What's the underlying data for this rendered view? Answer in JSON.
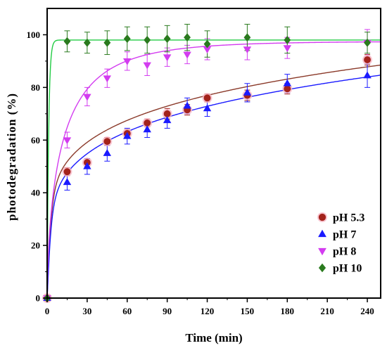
{
  "chart_data": {
    "type": "scatter",
    "xlabel": "Time (min)",
    "ylabel": "photodegradation (%)",
    "xlim": [
      0,
      250
    ],
    "ylim": [
      0,
      110
    ],
    "x_ticks": [
      0,
      30,
      60,
      90,
      120,
      150,
      180,
      210,
      240
    ],
    "y_ticks": [
      0,
      20,
      40,
      60,
      80,
      100
    ],
    "grid": false,
    "legend_position": "bottom-right",
    "series": [
      {
        "name": "pH 5.3",
        "marker": "circle",
        "color": "#a3221b",
        "fit_color": "#8b3a2a",
        "x": [
          0,
          15,
          30,
          45,
          60,
          75,
          90,
          105,
          120,
          150,
          180,
          240
        ],
        "y": [
          0,
          48,
          51.5,
          59.5,
          62.5,
          66.5,
          70,
          71.5,
          76,
          77,
          79.5,
          90.5
        ],
        "err": [
          0,
          1.5,
          1.5,
          1.5,
          1.5,
          1.5,
          2,
          2,
          1.5,
          2,
          2,
          2
        ]
      },
      {
        "name": "pH 7",
        "marker": "triangle-up",
        "color": "#1a1aff",
        "fit_color": "#1a1aff",
        "x": [
          0,
          15,
          30,
          45,
          60,
          75,
          90,
          105,
          120,
          150,
          180,
          240
        ],
        "y": [
          0,
          44,
          50,
          55,
          61.5,
          64,
          67.5,
          73,
          72,
          78,
          81.5,
          84.5
        ],
        "err": [
          0,
          3,
          3,
          3,
          3,
          3,
          3,
          3,
          3,
          3.5,
          3.5,
          4.5
        ]
      },
      {
        "name": "pH 8",
        "marker": "triangle-down",
        "color": "#d33cf0",
        "fit_color": "#d33cf0",
        "x": [
          0,
          15,
          30,
          45,
          60,
          75,
          90,
          105,
          120,
          150,
          180,
          240
        ],
        "y": [
          0,
          60,
          76.5,
          83.5,
          90,
          88.5,
          91.5,
          92.5,
          94.5,
          94.5,
          95,
          97
        ],
        "err": [
          0,
          3,
          3.5,
          3.5,
          3.5,
          4,
          3.5,
          3.5,
          4,
          4,
          4,
          5
        ]
      },
      {
        "name": "pH 10",
        "marker": "diamond",
        "color": "#2a7a1e",
        "fit_color": "#22cc44",
        "x": [
          0,
          15,
          30,
          45,
          60,
          75,
          90,
          105,
          120,
          150,
          180,
          240
        ],
        "y": [
          0,
          97.5,
          97,
          97,
          98.5,
          98,
          98.5,
          99,
          96.5,
          99,
          98,
          97
        ],
        "err": [
          0,
          4,
          4,
          4.5,
          4.5,
          5,
          5,
          5,
          5,
          5,
          5,
          4
        ]
      }
    ]
  }
}
